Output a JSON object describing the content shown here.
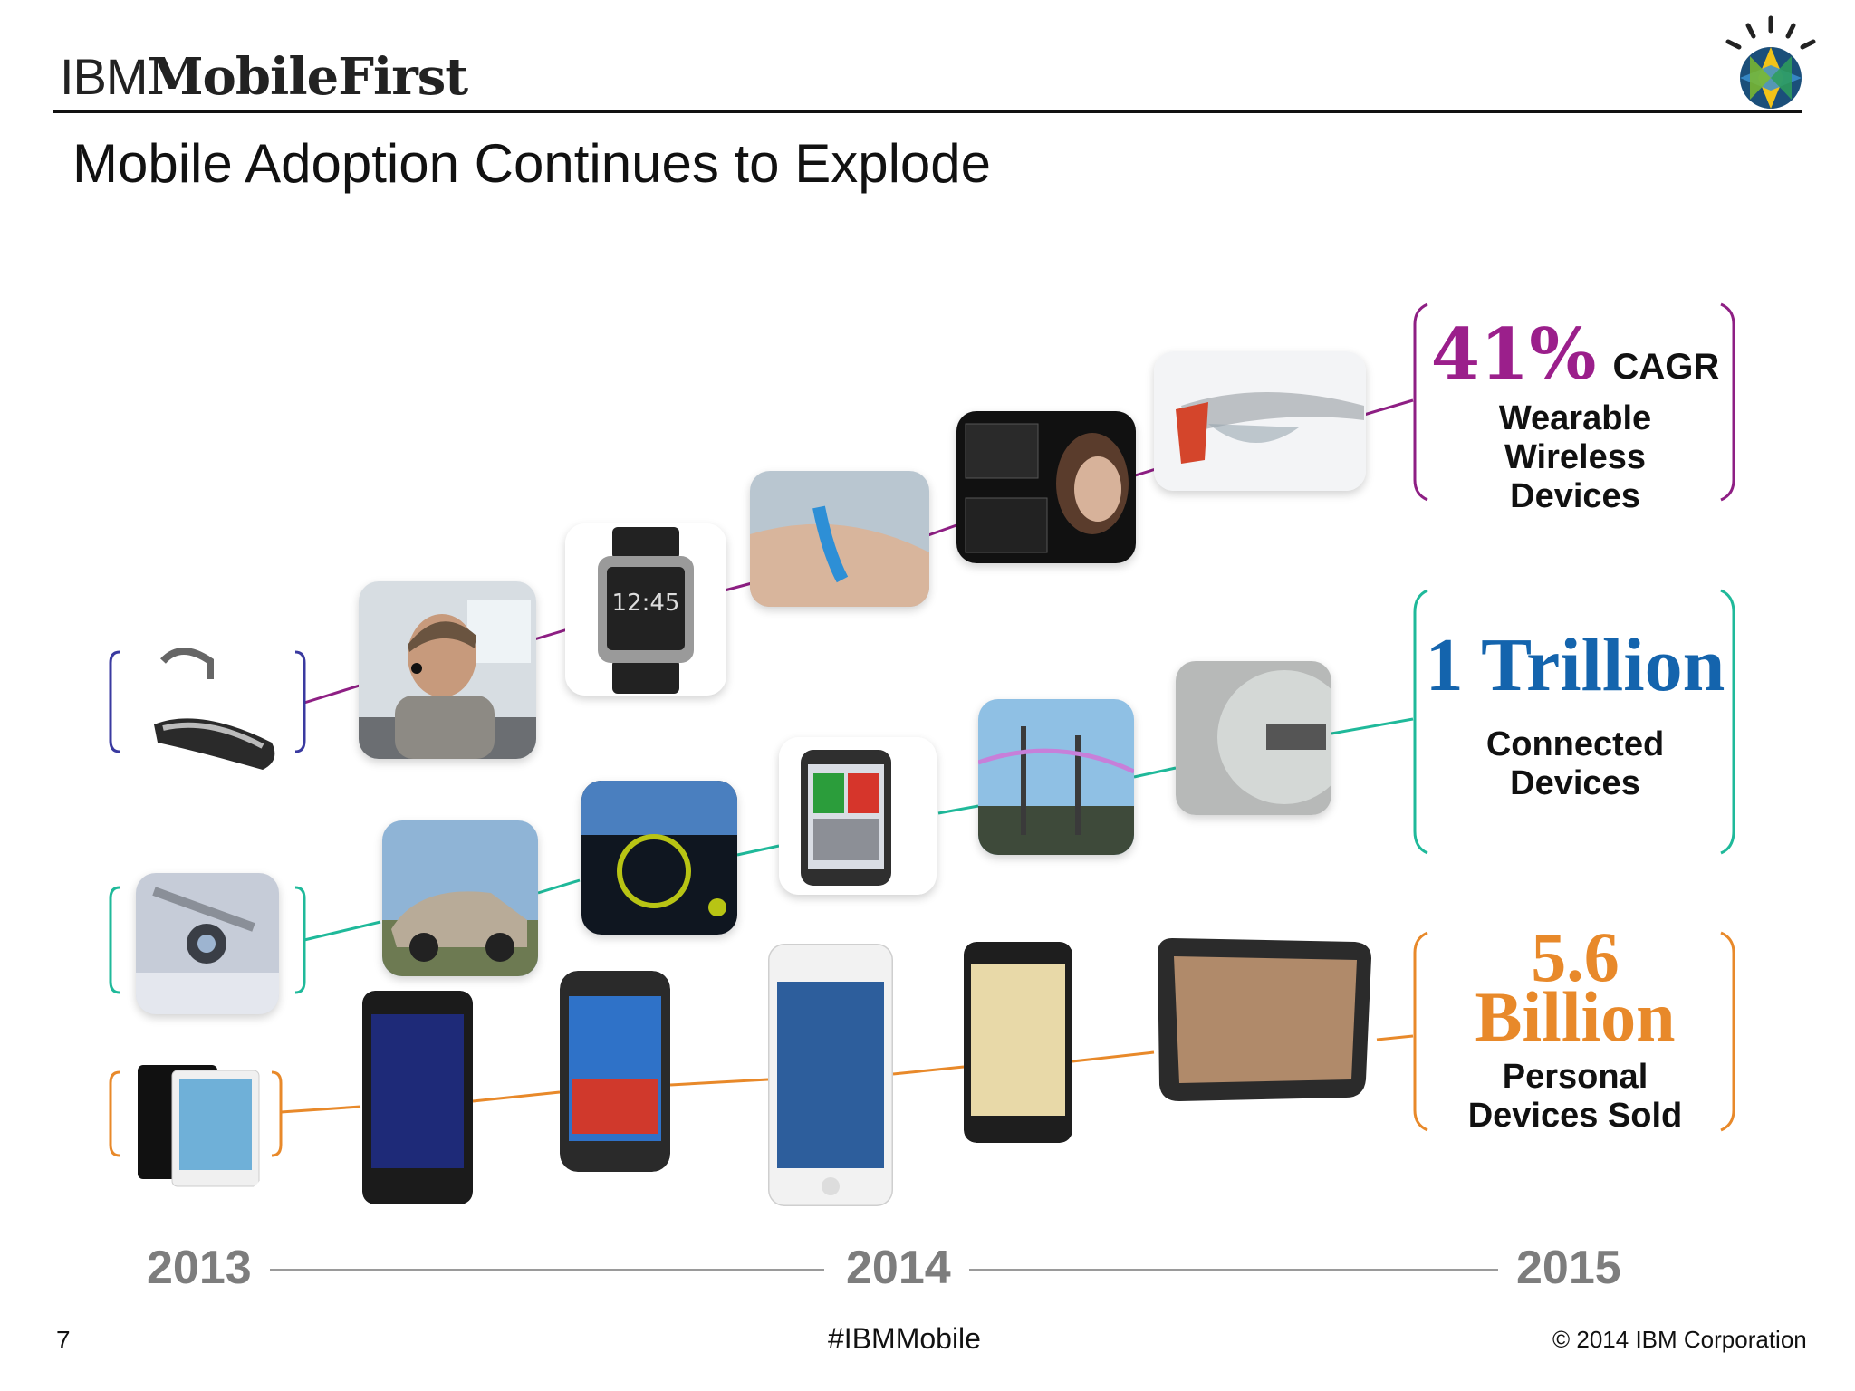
{
  "header": {
    "brand_ibm": "IBM",
    "brand_product": "MobileFirst",
    "title": "Mobile Adoption Continues to Explode",
    "logo_icon": "ibm-smarter-planet-icon"
  },
  "stats": {
    "wearables": {
      "value": "41%",
      "suffix": "CAGR",
      "line1": "Wearable",
      "line2": "Wireless",
      "line3": "Devices",
      "color": "#9b1f8b"
    },
    "connected": {
      "value": "1 Trillion",
      "line1": "Connected",
      "line2": "Devices",
      "color": "#1464ad"
    },
    "personal": {
      "value_line1": "5.6",
      "value_line2": "Billion",
      "line1": "Personal",
      "line2": "Devices Sold",
      "color": "#e8892a"
    }
  },
  "colors": {
    "wearable_row": "#8e1f84",
    "connected_row": "#1fb99a",
    "personal_row": "#e8892a",
    "bracket_blue": "#3a3aa0"
  },
  "tiles": {
    "wearable": [
      "bluetooth-headset-icon",
      "driver-with-headset-icon",
      "smartwatch-icon",
      "fitness-band-icon",
      "smart-glasses-user-icon",
      "smart-glasses-icon"
    ],
    "connected": [
      "security-camera-icon",
      "connected-car-icon",
      "car-dashboard-icon",
      "health-monitor-phone-icon",
      "power-lines-icon",
      "smart-meter-icon"
    ],
    "personal": [
      "ipad-tablets-icon",
      "blackberry-phone-icon",
      "samsung-phone-icon",
      "iphone-icon",
      "galaxy-note-phone-icon",
      "android-tablet-icon"
    ]
  },
  "timeline": {
    "y2013": "2013",
    "y2014": "2014",
    "y2015": "2015"
  },
  "footer": {
    "page": "7",
    "hashtag": "#IBMMobile",
    "copyright": "© 2014 IBM Corporation"
  }
}
